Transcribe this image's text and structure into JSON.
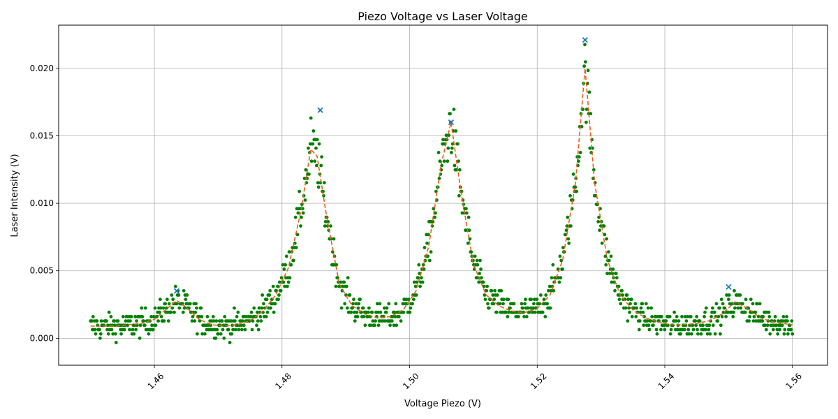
{
  "chart_data": {
    "type": "scatter",
    "title": "Piezo Voltage vs Laser Voltage",
    "xlabel": "Voltage Piezo (V)",
    "ylabel": "Laser Intensity (V)",
    "xlim": [
      1.445,
      1.5655
    ],
    "ylim": [
      -0.002,
      0.0232
    ],
    "xticks": [
      "1.46",
      "1.48",
      "1.50",
      "1.52",
      "1.54",
      "1.56"
    ],
    "yticks": [
      "0.000",
      "0.005",
      "0.010",
      "0.015",
      "0.020"
    ],
    "x_tick_rotation_deg": 45,
    "grid": true,
    "legend": "none",
    "colors": {
      "data_points": "#008000",
      "fit_line": "#e8601c",
      "peak_markers": "#1f77b4",
      "grid": "#b0b0b0"
    },
    "series": [
      {
        "kind": "scatter-points",
        "marker": "circle",
        "x_range": [
          1.45,
          1.56
        ],
        "points_count": 1100,
        "note_values": "noisy samples around the fitted curve"
      },
      {
        "kind": "dashed-fit",
        "x": [
          1.45,
          1.452,
          1.454,
          1.456,
          1.458,
          1.46,
          1.462,
          1.4635,
          1.465,
          1.467,
          1.469,
          1.471,
          1.473,
          1.475,
          1.477,
          1.479,
          1.481,
          1.483,
          1.4845,
          1.4855,
          1.487,
          1.489,
          1.491,
          1.493,
          1.495,
          1.497,
          1.499,
          1.501,
          1.503,
          1.505,
          1.5065,
          1.508,
          1.51,
          1.512,
          1.514,
          1.516,
          1.518,
          1.52,
          1.522,
          1.524,
          1.526,
          1.5275,
          1.529,
          1.531,
          1.533,
          1.535,
          1.537,
          1.539,
          1.541,
          1.543,
          1.545,
          1.547,
          1.549,
          1.551,
          1.553,
          1.555,
          1.557,
          1.56
        ],
        "y": [
          0.0009,
          0.0009,
          0.0009,
          0.001,
          0.0011,
          0.0014,
          0.0022,
          0.0028,
          0.0023,
          0.0014,
          0.001,
          0.0009,
          0.001,
          0.0013,
          0.002,
          0.0032,
          0.0052,
          0.0095,
          0.014,
          0.0135,
          0.009,
          0.004,
          0.0024,
          0.0018,
          0.0015,
          0.0016,
          0.0021,
          0.0035,
          0.0068,
          0.013,
          0.016,
          0.011,
          0.0055,
          0.0032,
          0.0024,
          0.002,
          0.0019,
          0.0022,
          0.0032,
          0.0058,
          0.0115,
          0.02,
          0.0115,
          0.0058,
          0.0032,
          0.0021,
          0.0015,
          0.0012,
          0.001,
          0.001,
          0.0011,
          0.0013,
          0.0018,
          0.0027,
          0.0022,
          0.0015,
          0.0012,
          0.001
        ]
      },
      {
        "kind": "peak-markers",
        "marker": "x",
        "x": [
          1.4635,
          1.486,
          1.5065,
          1.5275,
          1.55
        ],
        "y": [
          0.0035,
          0.0169,
          0.016,
          0.0221,
          0.0038
        ]
      }
    ]
  }
}
